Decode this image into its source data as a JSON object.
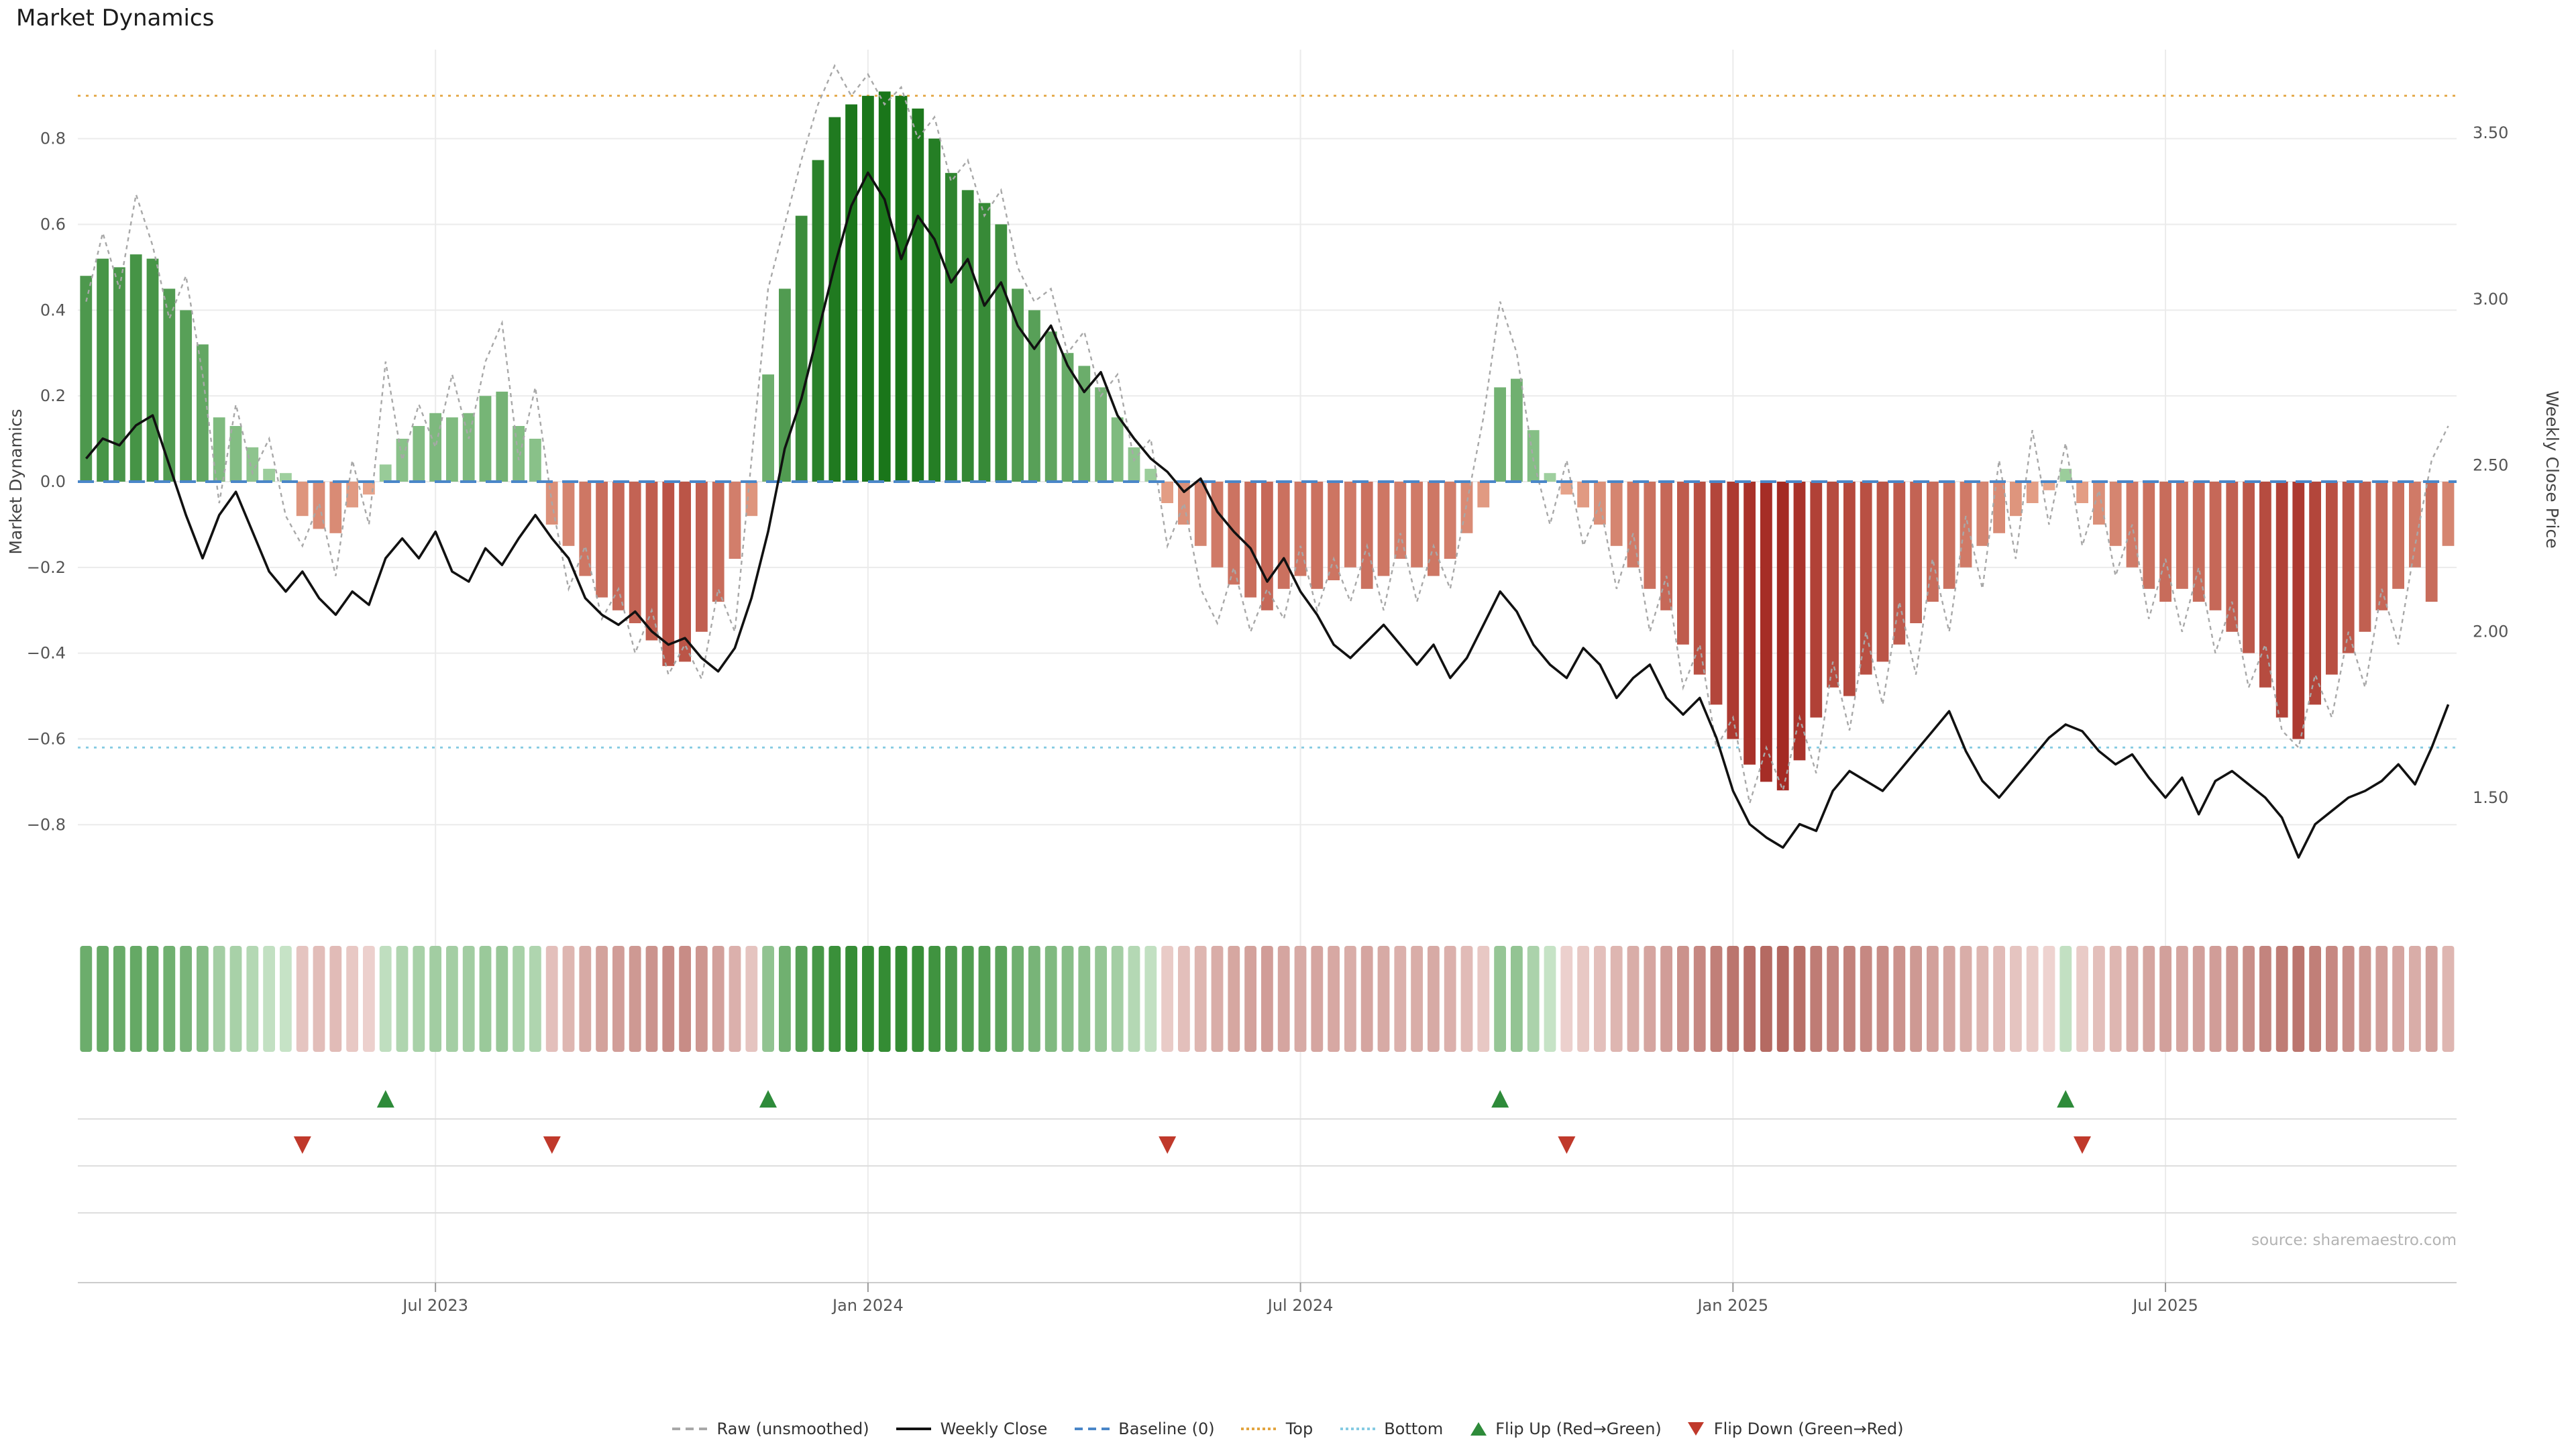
{
  "title": "Market Dynamics",
  "source": "source: sharemaestro.com",
  "colors": {
    "bar_green_dark": "#1a761a",
    "bar_green_light": "#a8d6a8",
    "bar_red_dark": "#a22620",
    "bar_red_light": "#eeb296",
    "heat_green_dark": "#348c34",
    "heat_green_light": "#d1e9d1",
    "heat_red_dark": "#b2645c",
    "heat_red_light": "#f3ddda",
    "raw_line": "#a8a8a8",
    "close_line": "#111111",
    "baseline": "#4a86c8",
    "top_line": "#e2a43f",
    "bottom_line": "#85cbe2",
    "flip_up": "#2e8b3a",
    "flip_down": "#c0392b",
    "grid": "#ebebeb"
  },
  "legend": {
    "items": [
      {
        "id": "raw",
        "label": "Raw (unsmoothed)",
        "marker": "dashed",
        "color": "#a8a8a8"
      },
      {
        "id": "weekly-close",
        "label": "Weekly Close",
        "marker": "solid",
        "color": "#111111"
      },
      {
        "id": "baseline",
        "label": "Baseline (0)",
        "marker": "dashed",
        "color": "#4a86c8"
      },
      {
        "id": "top",
        "label": "Top",
        "marker": "dotted",
        "color": "#e2a43f"
      },
      {
        "id": "bottom",
        "label": "Bottom",
        "marker": "dotted",
        "color": "#85cbe2"
      },
      {
        "id": "flip-up",
        "label": "Flip Up (Red→Green)",
        "marker": "tri-up",
        "color": "#2e8b3a"
      },
      {
        "id": "flip-down",
        "label": "Flip Down (Green→Red)",
        "marker": "tri-down",
        "color": "#c0392b"
      }
    ]
  },
  "chart_data": {
    "type": "bar",
    "title": "Market Dynamics",
    "x_start_date": "2023-02-06",
    "x_interval_days": 7,
    "ylabel_left": "Market Dynamics",
    "ylabel_right": "Weekly Close Price",
    "ylim_left": [
      -0.95,
      1.0
    ],
    "ylim_right": [
      1.15,
      3.75
    ],
    "grid": true,
    "legend_position": "bottom",
    "left_ticks": [
      0.8,
      0.6,
      0.4,
      0.2,
      0,
      -0.2,
      -0.4,
      -0.6,
      -0.8
    ],
    "right_ticks": [
      3.5,
      3.0,
      2.5,
      2.0,
      1.5
    ],
    "x_ticks": [
      {
        "week": 21,
        "label": "Jul 2023"
      },
      {
        "week": 47,
        "label": "Jan 2024"
      },
      {
        "week": 73,
        "label": "Jul 2024"
      },
      {
        "week": 99,
        "label": "Jan 2025"
      },
      {
        "week": 125,
        "label": "Jul 2025"
      }
    ],
    "bars": {
      "name": "Market Dynamics",
      "values": [
        0.48,
        0.52,
        0.5,
        0.53,
        0.52,
        0.45,
        0.4,
        0.32,
        0.15,
        0.13,
        0.08,
        0.03,
        0.02,
        -0.08,
        -0.11,
        -0.12,
        -0.06,
        -0.03,
        0.04,
        0.1,
        0.13,
        0.16,
        0.15,
        0.16,
        0.2,
        0.21,
        0.13,
        0.1,
        -0.1,
        -0.15,
        -0.22,
        -0.27,
        -0.3,
        -0.33,
        -0.37,
        -0.43,
        -0.42,
        -0.35,
        -0.28,
        -0.18,
        -0.08,
        0.25,
        0.45,
        0.62,
        0.75,
        0.85,
        0.88,
        0.9,
        0.91,
        0.9,
        0.87,
        0.8,
        0.72,
        0.68,
        0.65,
        0.6,
        0.45,
        0.4,
        0.35,
        0.3,
        0.27,
        0.22,
        0.15,
        0.08,
        0.03,
        -0.05,
        -0.1,
        -0.15,
        -0.2,
        -0.24,
        -0.27,
        -0.3,
        -0.25,
        -0.22,
        -0.25,
        -0.23,
        -0.2,
        -0.25,
        -0.22,
        -0.18,
        -0.2,
        -0.22,
        -0.18,
        -0.12,
        -0.06,
        0.22,
        0.24,
        0.12,
        0.02,
        -0.03,
        -0.06,
        -0.1,
        -0.15,
        -0.2,
        -0.25,
        -0.3,
        -0.38,
        -0.45,
        -0.52,
        -0.6,
        -0.66,
        -0.7,
        -0.72,
        -0.65,
        -0.55,
        -0.48,
        -0.5,
        -0.45,
        -0.42,
        -0.38,
        -0.33,
        -0.28,
        -0.25,
        -0.2,
        -0.15,
        -0.12,
        -0.08,
        -0.05,
        -0.02,
        0.03,
        -0.05,
        -0.1,
        -0.15,
        -0.2,
        -0.25,
        -0.28,
        -0.25,
        -0.28,
        -0.3,
        -0.35,
        -0.4,
        -0.48,
        -0.55,
        -0.6,
        -0.52,
        -0.45,
        -0.4,
        -0.35,
        -0.3,
        -0.25,
        -0.2,
        -0.28,
        -0.15
      ]
    },
    "series": [
      {
        "name": "Raw (unsmoothed)",
        "axis": "left",
        "style": "dashed",
        "values": [
          0.42,
          0.58,
          0.45,
          0.67,
          0.55,
          0.38,
          0.48,
          0.25,
          -0.05,
          0.18,
          0.02,
          0.1,
          -0.08,
          -0.15,
          -0.05,
          -0.22,
          0.05,
          -0.1,
          0.28,
          0.05,
          0.18,
          0.08,
          0.25,
          0.1,
          0.28,
          0.37,
          0.05,
          0.22,
          -0.05,
          -0.25,
          -0.15,
          -0.32,
          -0.25,
          -0.4,
          -0.3,
          -0.45,
          -0.38,
          -0.46,
          -0.25,
          -0.35,
          0.05,
          0.45,
          0.6,
          0.75,
          0.88,
          0.97,
          0.9,
          0.95,
          0.88,
          0.92,
          0.8,
          0.85,
          0.7,
          0.75,
          0.62,
          0.68,
          0.5,
          0.42,
          0.45,
          0.3,
          0.35,
          0.2,
          0.25,
          0.05,
          0.1,
          -0.15,
          -0.05,
          -0.25,
          -0.33,
          -0.2,
          -0.35,
          -0.25,
          -0.32,
          -0.15,
          -0.3,
          -0.18,
          -0.28,
          -0.15,
          -0.3,
          -0.12,
          -0.28,
          -0.15,
          -0.25,
          -0.05,
          0.15,
          0.42,
          0.3,
          0.05,
          -0.1,
          0.05,
          -0.15,
          -0.05,
          -0.25,
          -0.12,
          -0.35,
          -0.22,
          -0.48,
          -0.38,
          -0.62,
          -0.55,
          -0.75,
          -0.62,
          -0.72,
          -0.55,
          -0.68,
          -0.42,
          -0.58,
          -0.35,
          -0.52,
          -0.28,
          -0.45,
          -0.18,
          -0.35,
          -0.08,
          -0.25,
          0.05,
          -0.18,
          0.12,
          -0.1,
          0.09,
          -0.15,
          -0.02,
          -0.22,
          -0.1,
          -0.32,
          -0.18,
          -0.35,
          -0.2,
          -0.4,
          -0.28,
          -0.48,
          -0.38,
          -0.58,
          -0.62,
          -0.45,
          -0.55,
          -0.35,
          -0.48,
          -0.25,
          -0.38,
          -0.15,
          0.05,
          0.13
        ]
      },
      {
        "name": "Weekly Close",
        "axis": "right",
        "style": "solid",
        "values": [
          2.52,
          2.58,
          2.56,
          2.62,
          2.65,
          2.5,
          2.35,
          2.22,
          2.35,
          2.42,
          2.3,
          2.18,
          2.12,
          2.18,
          2.1,
          2.05,
          2.12,
          2.08,
          2.22,
          2.28,
          2.22,
          2.3,
          2.18,
          2.15,
          2.25,
          2.2,
          2.28,
          2.35,
          2.28,
          2.22,
          2.1,
          2.05,
          2.02,
          2.06,
          2.0,
          1.96,
          1.98,
          1.92,
          1.88,
          1.95,
          2.1,
          2.3,
          2.55,
          2.7,
          2.9,
          3.1,
          3.28,
          3.38,
          3.3,
          3.12,
          3.25,
          3.18,
          3.05,
          3.12,
          2.98,
          3.05,
          2.92,
          2.85,
          2.92,
          2.8,
          2.72,
          2.78,
          2.65,
          2.58,
          2.52,
          2.48,
          2.42,
          2.46,
          2.36,
          2.3,
          2.25,
          2.15,
          2.22,
          2.12,
          2.05,
          1.96,
          1.92,
          1.97,
          2.02,
          1.96,
          1.9,
          1.96,
          1.86,
          1.92,
          2.02,
          2.12,
          2.06,
          1.96,
          1.9,
          1.86,
          1.95,
          1.9,
          1.8,
          1.86,
          1.9,
          1.8,
          1.75,
          1.8,
          1.68,
          1.52,
          1.42,
          1.38,
          1.35,
          1.42,
          1.4,
          1.52,
          1.58,
          1.55,
          1.52,
          1.58,
          1.64,
          1.7,
          1.76,
          1.64,
          1.55,
          1.5,
          1.56,
          1.62,
          1.68,
          1.72,
          1.7,
          1.64,
          1.6,
          1.63,
          1.56,
          1.5,
          1.56,
          1.45,
          1.55,
          1.58,
          1.54,
          1.5,
          1.44,
          1.32,
          1.42,
          1.46,
          1.5,
          1.52,
          1.55,
          1.6,
          1.54,
          1.65,
          1.78
        ]
      }
    ],
    "reference_lines": {
      "baseline": 0,
      "top": 0.9,
      "bottom": -0.62
    },
    "flip_up_weeks": [
      18,
      41,
      85,
      119
    ],
    "flip_down_weeks": [
      13,
      28,
      65,
      89,
      120
    ]
  }
}
